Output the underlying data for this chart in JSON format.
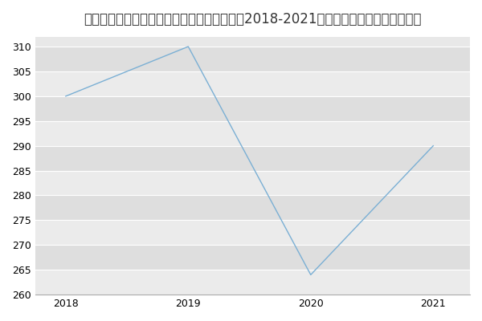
{
  "title": "电子科技大学信息与软件工程学院软件工程（2018-2021历年复试）研究生录取分数线",
  "x": [
    2018,
    2019,
    2020,
    2021
  ],
  "y": [
    300,
    310,
    264,
    290
  ],
  "line_color": "#7aafd4",
  "fig_bg_color": "#ffffff",
  "plot_bg_color": "#e8e8e8",
  "band_color_light": "#ebebeb",
  "band_color_dark": "#dedede",
  "ylim": [
    260,
    312
  ],
  "yticks": [
    260,
    265,
    270,
    275,
    280,
    285,
    290,
    295,
    300,
    305,
    310
  ],
  "xticks": [
    2018,
    2019,
    2020,
    2021
  ],
  "title_fontsize": 12,
  "tick_fontsize": 9,
  "grid_color": "#ffffff",
  "linewidth": 1.0
}
